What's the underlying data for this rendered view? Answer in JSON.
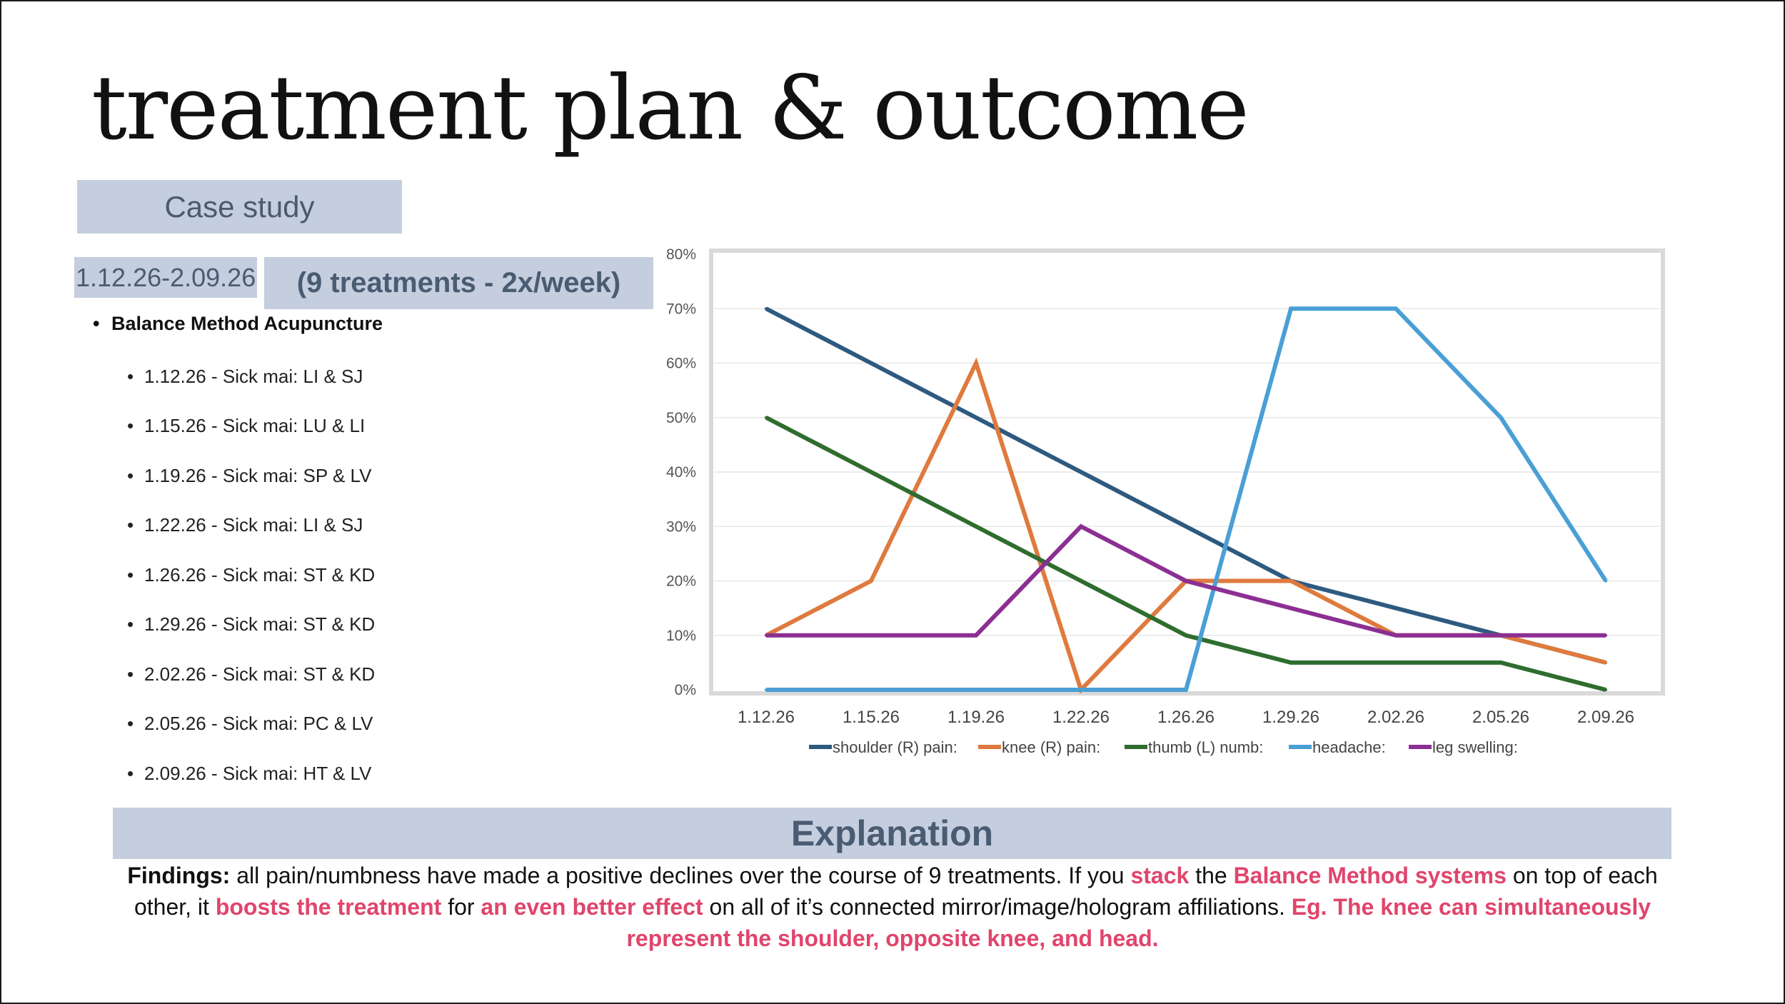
{
  "slide": {
    "title": "treatment plan & outcome",
    "case_label": "Case study",
    "date_range": "1.12.26-2.09.26",
    "treatment_count": "(9 treatments - 2x/week)",
    "method": "Balance Method Acupuncture",
    "sessions": [
      "1.12.26 - Sick mai: LI & SJ",
      "1.15.26 - Sick mai: LU & LI",
      "1.19.26 - Sick mai: SP & LV",
      "1.22.26 - Sick mai: LI & SJ",
      "1.26.26 - Sick mai: ST & KD",
      "1.29.26 - Sick mai: ST & KD",
      "2.02.26 - Sick mai: ST & KD",
      "2.05.26 - Sick mai: PC & LV",
      "2.09.26 - Sick mai: HT & LV"
    ]
  },
  "explanation": {
    "heading": "Explanation",
    "findings_label": "Findings:",
    "t1": " all pain/numbness have made a positive declines over the course of 9 treatments. If you ",
    "h1": "stack",
    "t2": " the ",
    "h2": "Balance Method systems",
    "t3": " on top of each other, it ",
    "h3": "boosts the treatment",
    "t4": " for ",
    "h4": "an even better effect",
    "t5": " on all of it’s connected mirror/image/hologram affiliations. ",
    "h5": "Eg. The knee can simultaneously represent the shoulder, opposite knee, and head."
  },
  "colors": {
    "shoulder": "#2e5a80",
    "knee": "#df7a3e",
    "thumb": "#2f6d2f",
    "headache": "#4a9fd5",
    "leg": "#8c2f93",
    "box_fill": "#c5cede",
    "highlight": "#e0456b"
  },
  "chart_data": {
    "type": "line",
    "title": "",
    "xlabel": "",
    "ylabel": "",
    "categories": [
      "1.12.26",
      "1.15.26",
      "1.19.26",
      "1.22.26",
      "1.26.26",
      "1.29.26",
      "2.02.26",
      "2.05.26",
      "2.09.26"
    ],
    "y_ticks": [
      "0%",
      "10%",
      "20%",
      "30%",
      "40%",
      "50%",
      "60%",
      "70%",
      "80%"
    ],
    "ylim": [
      0,
      80
    ],
    "grid": true,
    "legend": "bottom",
    "series": [
      {
        "name": "shoulder (R) pain:",
        "key": "shoulder",
        "values": [
          70,
          60,
          50,
          40,
          30,
          20,
          15,
          10,
          5
        ]
      },
      {
        "name": "knee (R) pain:",
        "key": "knee",
        "values": [
          10,
          20,
          60,
          0,
          20,
          20,
          10,
          10,
          5
        ]
      },
      {
        "name": "thumb (L) numb:",
        "key": "thumb",
        "values": [
          50,
          40,
          30,
          20,
          10,
          5,
          5,
          5,
          0
        ]
      },
      {
        "name": "headache:",
        "key": "headache",
        "values": [
          0,
          0,
          0,
          0,
          0,
          70,
          70,
          50,
          20
        ]
      },
      {
        "name": "leg swelling:",
        "key": "leg",
        "values": [
          10,
          10,
          10,
          30,
          20,
          15,
          10,
          10,
          10
        ]
      }
    ]
  }
}
